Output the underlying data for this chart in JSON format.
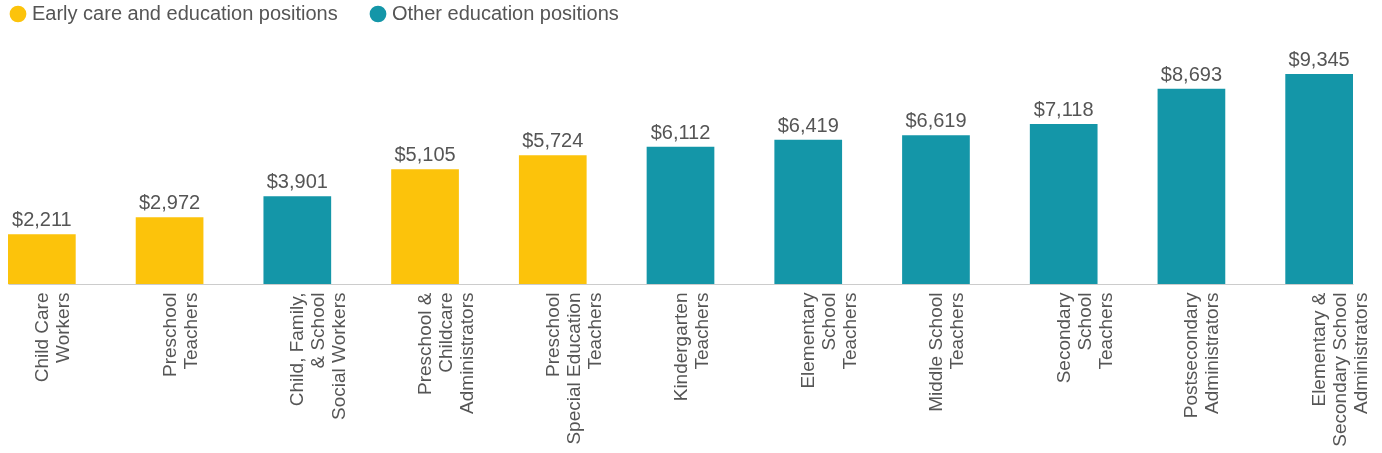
{
  "chart_data": {
    "type": "bar",
    "categories": [
      "Child Care\nWorkers",
      "Preschool\nTeachers",
      "Child, Family,\n& School\nSocial Workers",
      "Preschool &\nChildcare\nAdministrators",
      "Preschool\nSpecial Education\nTeachers",
      "Kindergarten\nTeachers",
      "Elementary\nSchool\nTeachers",
      "Middle School\nTeachers",
      "Secondary\nSchool\nTeachers",
      "Postsecondary\nAdministrators",
      "Elementary &\nSecondary School\nAdministrators"
    ],
    "series": [
      {
        "name": "Early care and education positions",
        "color": "#fcc30b",
        "values": [
          2211,
          2972,
          null,
          5105,
          5724,
          null,
          null,
          null,
          null,
          null,
          null
        ],
        "value_labels": [
          "$2,211",
          "$2,972",
          null,
          "$5,105",
          "$5,724",
          null,
          null,
          null,
          null,
          null,
          null
        ]
      },
      {
        "name": "Other education positions",
        "color": "#1496a8",
        "values": [
          null,
          null,
          3901,
          null,
          null,
          6112,
          6419,
          6619,
          7118,
          8693,
          9345
        ],
        "value_labels": [
          null,
          null,
          "$3,901",
          null,
          null,
          "$6,112",
          "$6,419",
          "$6,619",
          "$7,118",
          "$8,693",
          "$9,345"
        ]
      }
    ],
    "legend": "top left",
    "grid": false
  }
}
